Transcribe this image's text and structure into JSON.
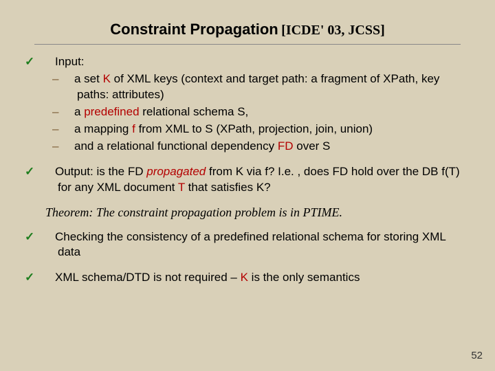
{
  "background_color": "#d9d0b8",
  "title": {
    "main": "Constraint Propagation",
    "ref": "[ICDE' 03, JCSS]"
  },
  "input": {
    "label": "Input:",
    "items": [
      {
        "pre": "a set ",
        "red": "K",
        "post": " of XML keys (context and target path: a fragment of XPath, key paths: attributes)"
      },
      {
        "pre": "a ",
        "red": "predefined",
        "post": " relational schema S,"
      },
      {
        "pre": "a mapping  ",
        "red": "f",
        "post": "  from XML to S (XPath, projection, join, union)"
      },
      {
        "pre": "and a relational functional dependency ",
        "red": "FD",
        "post": " over S"
      }
    ]
  },
  "output": {
    "label": "Output:",
    "text_pre": "   is the FD ",
    "red_word": "propagated",
    "text_mid": " from K via f? I.e. , does FD hold over the DB f(T) for any XML document ",
    "text_T": "T",
    "text_post": " that satisfies K?"
  },
  "theorem": {
    "label": "Theorem:",
    "text": " The constraint propagation problem is in PTIME."
  },
  "bullet3": "Checking the consistency of a predefined relational schema for storing XML data",
  "bullet4": {
    "pre": "XML schema/DTD is not required – ",
    "red": "K",
    "post": " is the only semantics"
  },
  "pagenum": "52",
  "colors": {
    "check": "#1d7d1d",
    "dash": "#7a5a33",
    "red": "#b30000"
  }
}
